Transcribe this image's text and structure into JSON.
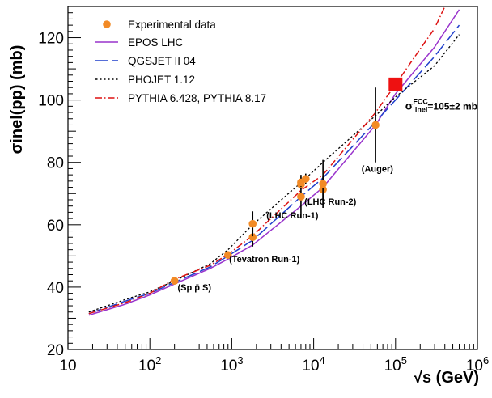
{
  "chart_data": {
    "type": "line",
    "xscale": "log",
    "xlim": [
      10,
      1000000
    ],
    "ylim": [
      20,
      130
    ],
    "x_ticks": [
      10,
      100,
      1000,
      10000,
      100000,
      1000000
    ],
    "x_tick_labels": [
      {
        "base": "10",
        "exp": ""
      },
      {
        "base": "10",
        "exp": "2"
      },
      {
        "base": "10",
        "exp": "3"
      },
      {
        "base": "10",
        "exp": "4"
      },
      {
        "base": "10",
        "exp": "5"
      },
      {
        "base": "10",
        "exp": "6"
      }
    ],
    "y_ticks": [
      20,
      40,
      60,
      80,
      100,
      120
    ],
    "y_tick_labels": [
      "20",
      "40",
      "60",
      "80",
      "100",
      "120"
    ],
    "xlabel": "√s (GeV)",
    "ylabel": "σinel(pp) (mb)",
    "legend_position": "top-left",
    "series": [
      {
        "name": "EPOS LHC",
        "color": "#9933cc",
        "style": "solid",
        "x": [
          18,
          50,
          100,
          200,
          546,
          900,
          1800,
          7000,
          13000,
          57000,
          100000,
          300000,
          600000
        ],
        "y": [
          31,
          34.5,
          37.5,
          41,
          46,
          49,
          53.5,
          66,
          72,
          92,
          102,
          117,
          129
        ]
      },
      {
        "name": "QGSJET II 04",
        "color": "#1f3fcc",
        "style": "longdash",
        "x": [
          18,
          50,
          100,
          200,
          546,
          900,
          1800,
          7000,
          13000,
          57000,
          100000,
          300000,
          600000
        ],
        "y": [
          31.5,
          35.5,
          38,
          41.5,
          46.5,
          50,
          55,
          69,
          75,
          93,
          100,
          114,
          124
        ]
      },
      {
        "name": "PHOJET 1.12",
        "color": "#000000",
        "style": "dotted",
        "x": [
          18,
          50,
          100,
          200,
          546,
          900,
          1800,
          7000,
          13000,
          57000,
          100000,
          300000,
          600000
        ],
        "y": [
          32,
          36,
          38.5,
          42,
          47.5,
          52,
          60,
          73.5,
          80,
          95,
          101,
          111,
          121
        ]
      },
      {
        "name": "PYTHIA 6.428, PYTHIA 8.17",
        "color": "#dd1111",
        "style": "dashdot",
        "x": [
          18,
          50,
          100,
          200,
          546,
          900,
          1800,
          7000,
          13000,
          57000,
          100000,
          300000,
          400000
        ],
        "y": [
          31.5,
          35,
          38,
          42.5,
          47,
          50.5,
          56.5,
          71,
          76,
          96,
          105,
          123,
          130
        ]
      }
    ],
    "experimental": {
      "name": "Experimental data",
      "color": "#f28a25",
      "points": [
        {
          "x": 200,
          "y": 42,
          "err": 0.8
        },
        {
          "x": 900,
          "y": 50.3,
          "err": 0.8
        },
        {
          "x": 1800,
          "y": 56,
          "err": 3
        },
        {
          "x": 1800,
          "y": 60.3,
          "err": 4
        },
        {
          "x": 7000,
          "y": 69,
          "err": 7
        },
        {
          "x": 7000,
          "y": 72.9,
          "err": 1.5
        },
        {
          "x": 7000,
          "y": 73.6,
          "err": 1.5
        },
        {
          "x": 8000,
          "y": 74.7,
          "err": 1.7
        },
        {
          "x": 13000,
          "y": 71.3,
          "err": 4.5
        },
        {
          "x": 13000,
          "y": 73.1,
          "err": 7.7
        },
        {
          "x": 57000,
          "y": 92,
          "err": 12
        }
      ]
    },
    "fcc_point": {
      "x": 100000,
      "y": 105,
      "color": "#ee1111"
    },
    "fcc_label": {
      "sigma": "σ",
      "sup": "FCC",
      "sub": "inel",
      "rest": "=105±2 mb"
    },
    "annotations": [
      {
        "text": "(Sp p̄ S)",
        "x": 350,
        "y": 39
      },
      {
        "text": "(Tevatron Run-1)",
        "x": 2500,
        "y": 48
      },
      {
        "text": "(LHC Run-1)",
        "x": 5500,
        "y": 62
      },
      {
        "text": "(LHC Run-2)",
        "x": 16000,
        "y": 66.5
      },
      {
        "text": "(Auger)",
        "x": 60000,
        "y": 77
      }
    ]
  }
}
